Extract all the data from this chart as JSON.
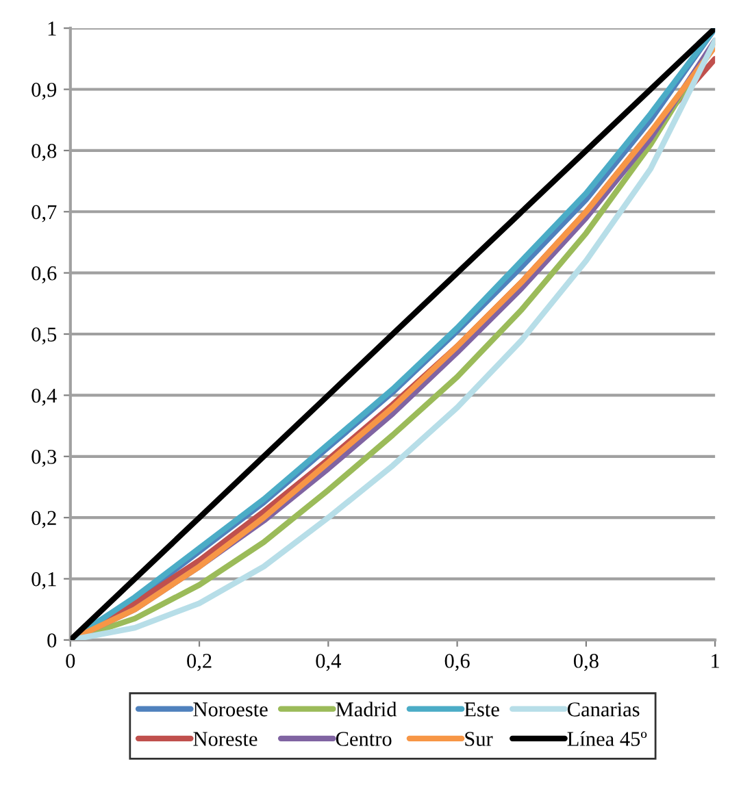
{
  "chart_data": {
    "type": "line",
    "x": [
      0,
      0.1,
      0.2,
      0.3,
      0.4,
      0.5,
      0.6,
      0.7,
      0.8,
      0.9,
      1
    ],
    "series": [
      {
        "name": "Noroeste",
        "color": "#4f81bd",
        "values": [
          0,
          0.065,
          0.145,
          0.225,
          0.315,
          0.405,
          0.505,
          0.61,
          0.72,
          0.85,
          1
        ]
      },
      {
        "name": "Noreste",
        "color": "#c0504d",
        "values": [
          0,
          0.06,
          0.13,
          0.21,
          0.295,
          0.385,
          0.48,
          0.585,
          0.7,
          0.83,
          0.95
        ]
      },
      {
        "name": "Madrid",
        "color": "#9bbb59",
        "values": [
          0,
          0.035,
          0.09,
          0.16,
          0.245,
          0.335,
          0.43,
          0.54,
          0.665,
          0.81,
          0.98
        ]
      },
      {
        "name": "Centro",
        "color": "#8064a2",
        "values": [
          0,
          0.05,
          0.12,
          0.195,
          0.28,
          0.37,
          0.47,
          0.575,
          0.69,
          0.82,
          0.98
        ]
      },
      {
        "name": "Este",
        "color": "#4bacc6",
        "values": [
          0,
          0.07,
          0.15,
          0.23,
          0.32,
          0.41,
          0.51,
          0.62,
          0.73,
          0.86,
          1
        ]
      },
      {
        "name": "Sur",
        "color": "#f79646",
        "values": [
          0,
          0.05,
          0.12,
          0.2,
          0.29,
          0.38,
          0.48,
          0.585,
          0.7,
          0.83,
          0.97
        ]
      },
      {
        "name": "Canarias",
        "color": "#b7dee8",
        "values": [
          0,
          0.02,
          0.06,
          0.12,
          0.2,
          0.285,
          0.38,
          0.49,
          0.62,
          0.77,
          0.98
        ]
      },
      {
        "name": "Línea 45º",
        "color": "#000000",
        "values": [
          0,
          0.1,
          0.2,
          0.3,
          0.4,
          0.5,
          0.6,
          0.7,
          0.8,
          0.9,
          1
        ]
      }
    ],
    "xlim": [
      0,
      1
    ],
    "ylim": [
      0,
      1
    ],
    "xticks": [
      0,
      {
        "value": 0.2,
        "label": "0,2"
      },
      {
        "value": 0.4,
        "label": "0,4"
      },
      {
        "value": 0.6,
        "label": "0,6"
      },
      {
        "value": 0.8,
        "label": "0,8"
      },
      1
    ],
    "yticks": [
      0,
      {
        "value": 0.1,
        "label": "0,1"
      },
      {
        "value": 0.2,
        "label": "0,2"
      },
      {
        "value": 0.3,
        "label": "0,3"
      },
      {
        "value": 0.4,
        "label": "0,4"
      },
      {
        "value": 0.5,
        "label": "0,5"
      },
      {
        "value": 0.6,
        "label": "0,6"
      },
      {
        "value": 0.7,
        "label": "0,7"
      },
      {
        "value": 0.8,
        "label": "0,8"
      },
      {
        "value": 0.9,
        "label": "0,9"
      },
      1
    ],
    "grid": "y",
    "legend": "bottom",
    "marker": "none",
    "line_style": "solid"
  }
}
